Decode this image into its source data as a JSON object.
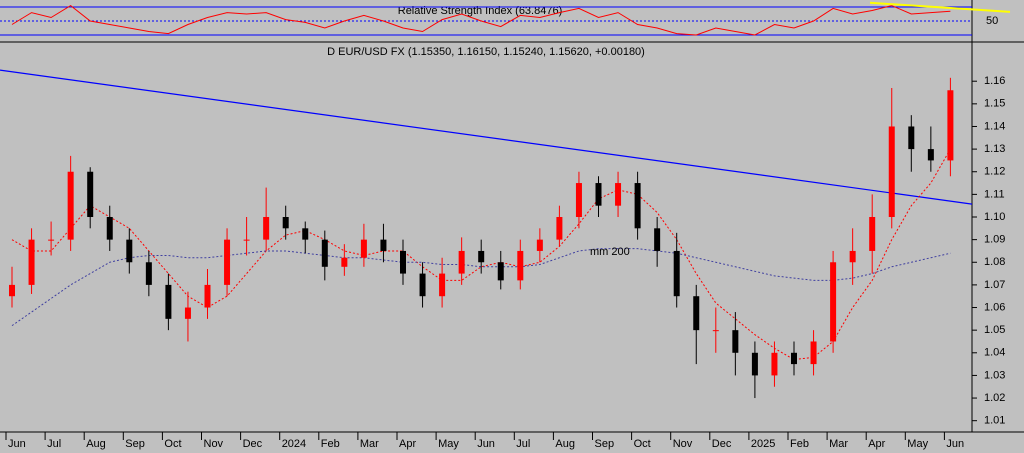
{
  "chart_data": [
    {
      "type": "line",
      "title": "Relative Strength Index (63.8476)",
      "ylim": [
        20,
        80
      ],
      "yticks": [
        50
      ],
      "hlines": [
        30,
        70
      ],
      "series": [
        {
          "name": null,
          "color": "#ff0000",
          "values": [
            45,
            62,
            55,
            72,
            50,
            45,
            40,
            35,
            32,
            45,
            55,
            62,
            60,
            62,
            52,
            48,
            40,
            50,
            58,
            50,
            40,
            35,
            52,
            60,
            50,
            42,
            58,
            55,
            62,
            68,
            55,
            62,
            45,
            40,
            32,
            30,
            40,
            35,
            30,
            45,
            40,
            50,
            68,
            60,
            65,
            72,
            60,
            62,
            64
          ]
        }
      ],
      "trendline": {
        "color": "#ffff00",
        "values": [
          76,
          63
        ]
      }
    },
    {
      "type": "candlestick",
      "title": "D EUR/USD FX (1.15350, 1.16150, 1.15240, 1.15620, +0.00180)",
      "categories": [
        "Jun",
        null,
        "Jul",
        null,
        "Aug",
        null,
        "Sep",
        null,
        "Oct",
        null,
        "Nov",
        null,
        "Dec",
        null,
        "2024",
        null,
        "Feb",
        null,
        "Mar",
        null,
        "Apr",
        null,
        "May",
        null,
        "Jun",
        null,
        "Jul",
        null,
        "Aug",
        null,
        "Sep",
        null,
        "Oct",
        null,
        "Nov",
        null,
        "Dec",
        null,
        "2025",
        null,
        "Feb",
        null,
        "Mar",
        null,
        "Apr",
        null,
        "May",
        null,
        "Jun"
      ],
      "up_color": "#ff0000",
      "down_color": "#000000",
      "open": [
        1.065,
        1.07,
        1.09,
        1.09,
        1.12,
        1.1,
        1.09,
        1.08,
        1.07,
        1.055,
        1.06,
        1.07,
        1.09,
        1.09,
        1.1,
        1.095,
        1.09,
        1.078,
        1.082,
        1.09,
        1.085,
        1.075,
        1.065,
        1.075,
        1.085,
        1.08,
        1.072,
        1.085,
        1.09,
        1.1,
        1.115,
        1.105,
        1.115,
        1.095,
        1.085,
        1.065,
        1.05,
        1.05,
        1.04,
        1.03,
        1.04,
        1.035,
        1.045,
        1.08,
        1.085,
        1.1,
        1.14,
        1.13,
        1.125
      ],
      "high": [
        1.078,
        1.095,
        1.098,
        1.127,
        1.122,
        1.105,
        1.095,
        1.085,
        1.075,
        1.067,
        1.077,
        1.095,
        1.1,
        1.113,
        1.105,
        1.098,
        1.094,
        1.088,
        1.097,
        1.097,
        1.09,
        1.08,
        1.082,
        1.091,
        1.09,
        1.085,
        1.09,
        1.095,
        1.105,
        1.12,
        1.118,
        1.12,
        1.12,
        1.1,
        1.093,
        1.07,
        1.06,
        1.058,
        1.045,
        1.045,
        1.045,
        1.05,
        1.085,
        1.095,
        1.11,
        1.157,
        1.145,
        1.14,
        1.1615
      ],
      "low": [
        1.06,
        1.066,
        1.083,
        1.085,
        1.095,
        1.085,
        1.075,
        1.065,
        1.05,
        1.045,
        1.055,
        1.065,
        1.083,
        1.085,
        1.09,
        1.084,
        1.072,
        1.074,
        1.078,
        1.08,
        1.07,
        1.06,
        1.06,
        1.07,
        1.075,
        1.068,
        1.068,
        1.08,
        1.087,
        1.095,
        1.1,
        1.1,
        1.09,
        1.078,
        1.06,
        1.035,
        1.04,
        1.03,
        1.02,
        1.025,
        1.03,
        1.03,
        1.04,
        1.07,
        1.075,
        1.095,
        1.12,
        1.12,
        1.118
      ],
      "close": [
        1.07,
        1.09,
        1.09,
        1.12,
        1.1,
        1.09,
        1.08,
        1.07,
        1.055,
        1.06,
        1.07,
        1.09,
        1.09,
        1.1,
        1.095,
        1.09,
        1.078,
        1.082,
        1.09,
        1.085,
        1.075,
        1.065,
        1.075,
        1.085,
        1.08,
        1.072,
        1.085,
        1.09,
        1.1,
        1.115,
        1.105,
        1.115,
        1.095,
        1.085,
        1.065,
        1.05,
        1.05,
        1.04,
        1.03,
        1.04,
        1.035,
        1.045,
        1.08,
        1.085,
        1.1,
        1.14,
        1.13,
        1.125,
        1.156
      ],
      "series": [
        {
          "name": null,
          "color": "#ff0000",
          "values": [
            1.09,
            1.085,
            1.085,
            1.095,
            1.105,
            1.1,
            1.095,
            1.085,
            1.075,
            1.065,
            1.06,
            1.065,
            1.075,
            1.085,
            1.092,
            1.094,
            1.09,
            1.085,
            1.083,
            1.085,
            1.085,
            1.078,
            1.072,
            1.072,
            1.078,
            1.08,
            1.078,
            1.08,
            1.087,
            1.097,
            1.108,
            1.112,
            1.11,
            1.102,
            1.09,
            1.075,
            1.062,
            1.055,
            1.048,
            1.042,
            1.037,
            1.038,
            1.045,
            1.06,
            1.072,
            1.09,
            1.105,
            1.115,
            1.13
          ]
        },
        {
          "name": "mm 200",
          "color": "#4040a0",
          "values": [
            1.052,
            1.058,
            1.064,
            1.07,
            1.075,
            1.08,
            1.082,
            1.083,
            1.083,
            1.082,
            1.082,
            1.083,
            1.084,
            1.085,
            1.085,
            1.084,
            1.083,
            1.082,
            1.082,
            1.081,
            1.08,
            1.08,
            1.079,
            1.079,
            1.078,
            1.078,
            1.078,
            1.079,
            1.082,
            1.085,
            1.086,
            1.086,
            1.086,
            1.085,
            1.084,
            1.082,
            1.08,
            1.078,
            1.076,
            1.074,
            1.073,
            1.072,
            1.072,
            1.073,
            1.075,
            1.078,
            1.08,
            1.082,
            1.084
          ]
        }
      ],
      "trendline": {
        "color": "#0000ff",
        "values": [
          1.1649,
          1.1057
        ]
      },
      "ylim": [
        1.005,
        1.176
      ],
      "yticks": [
        1.01,
        1.02,
        1.03,
        1.04,
        1.05,
        1.06,
        1.07,
        1.08,
        1.09,
        {
          "value": 1.1,
          "label": "1.10"
        },
        1.11,
        1.12,
        1.13,
        1.14,
        1.15,
        1.16
      ]
    }
  ]
}
